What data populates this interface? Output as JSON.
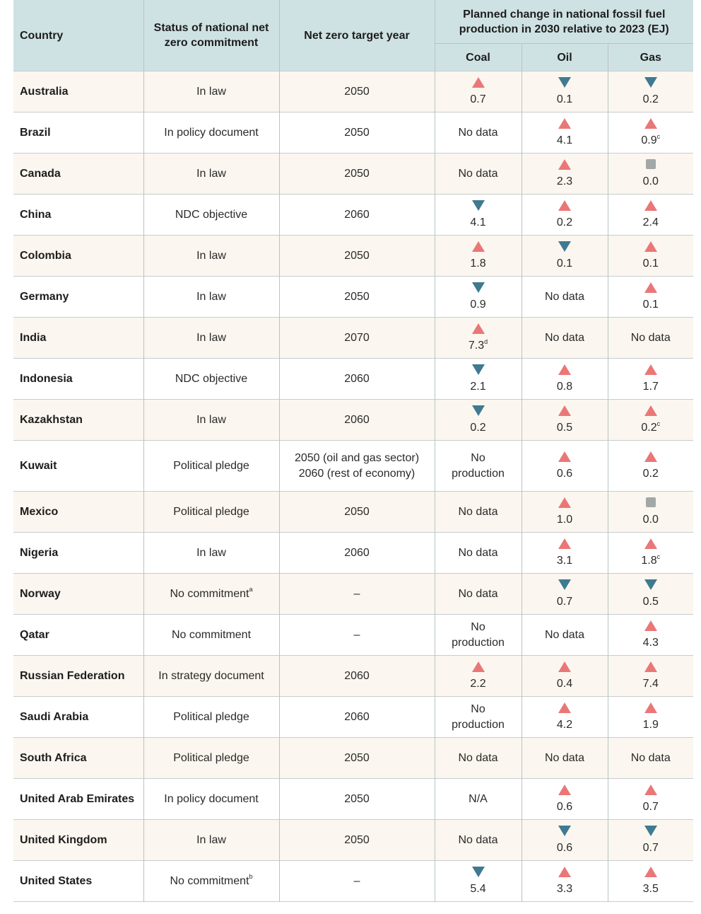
{
  "headers": {
    "country": "Country",
    "status": "Status of national net zero commitment",
    "target": "Net zero target year",
    "group": "Planned change in national fossil fuel production in 2030 relative to 2023 (EJ)",
    "coal": "Coal",
    "oil": "Oil",
    "gas": "Gas"
  },
  "colors": {
    "increase": "#ea7777",
    "decrease": "#3f7a91",
    "no_change": "#a3a7a8",
    "header_bg": "#cfe2e3",
    "alt_row_bg": "#fbf6ef"
  },
  "rows": [
    {
      "country": "Australia",
      "status": "In law",
      "status_note": "",
      "target": "2050",
      "coal": {
        "dir": "up",
        "value": "0.7",
        "note": ""
      },
      "oil": {
        "dir": "down",
        "value": "0.1",
        "note": ""
      },
      "gas": {
        "dir": "down",
        "value": "0.2",
        "note": ""
      }
    },
    {
      "country": "Brazil",
      "status": "In policy document",
      "status_note": "",
      "target": "2050",
      "coal": {
        "dir": "none",
        "value": "No data",
        "note": ""
      },
      "oil": {
        "dir": "up",
        "value": "4.1",
        "note": ""
      },
      "gas": {
        "dir": "up",
        "value": "0.9",
        "note": "c"
      }
    },
    {
      "country": "Canada",
      "status": "In law",
      "status_note": "",
      "target": "2050",
      "coal": {
        "dir": "none",
        "value": "No data",
        "note": ""
      },
      "oil": {
        "dir": "up",
        "value": "2.3",
        "note": ""
      },
      "gas": {
        "dir": "flat",
        "value": "0.0",
        "note": ""
      }
    },
    {
      "country": "China",
      "status": "NDC objective",
      "status_note": "",
      "target": "2060",
      "coal": {
        "dir": "down",
        "value": "4.1",
        "note": ""
      },
      "oil": {
        "dir": "up",
        "value": "0.2",
        "note": ""
      },
      "gas": {
        "dir": "up",
        "value": "2.4",
        "note": ""
      }
    },
    {
      "country": "Colombia",
      "status": "In law",
      "status_note": "",
      "target": "2050",
      "coal": {
        "dir": "up",
        "value": "1.8",
        "note": ""
      },
      "oil": {
        "dir": "down",
        "value": "0.1",
        "note": ""
      },
      "gas": {
        "dir": "up",
        "value": "0.1",
        "note": ""
      }
    },
    {
      "country": "Germany",
      "status": "In law",
      "status_note": "",
      "target": "2050",
      "coal": {
        "dir": "down",
        "value": "0.9",
        "note": ""
      },
      "oil": {
        "dir": "none",
        "value": "No data",
        "note": ""
      },
      "gas": {
        "dir": "up",
        "value": "0.1",
        "note": ""
      }
    },
    {
      "country": "India",
      "status": "In law",
      "status_note": "",
      "target": "2070",
      "coal": {
        "dir": "up",
        "value": "7.3",
        "note": "d"
      },
      "oil": {
        "dir": "none",
        "value": "No data",
        "note": ""
      },
      "gas": {
        "dir": "none",
        "value": "No data",
        "note": ""
      }
    },
    {
      "country": "Indonesia",
      "status": "NDC objective",
      "status_note": "",
      "target": "2060",
      "coal": {
        "dir": "down",
        "value": "2.1",
        "note": ""
      },
      "oil": {
        "dir": "up",
        "value": "0.8",
        "note": ""
      },
      "gas": {
        "dir": "up",
        "value": "1.7",
        "note": ""
      }
    },
    {
      "country": "Kazakhstan",
      "status": "In law",
      "status_note": "",
      "target": "2060",
      "coal": {
        "dir": "down",
        "value": "0.2",
        "note": ""
      },
      "oil": {
        "dir": "up",
        "value": "0.5",
        "note": ""
      },
      "gas": {
        "dir": "up",
        "value": "0.2",
        "note": "c"
      }
    },
    {
      "country": "Kuwait",
      "status": "Political pledge",
      "status_note": "",
      "target": "2050 (oil and gas sector)",
      "target2": "2060 (rest of economy)",
      "coal": {
        "dir": "none",
        "value": "No",
        "value2": "production",
        "note": ""
      },
      "oil": {
        "dir": "up",
        "value": "0.6",
        "note": ""
      },
      "gas": {
        "dir": "up",
        "value": "0.2",
        "note": ""
      }
    },
    {
      "country": "Mexico",
      "status": "Political pledge",
      "status_note": "",
      "target": "2050",
      "coal": {
        "dir": "none",
        "value": "No data",
        "note": ""
      },
      "oil": {
        "dir": "up",
        "value": "1.0",
        "note": ""
      },
      "gas": {
        "dir": "flat",
        "value": "0.0",
        "note": ""
      }
    },
    {
      "country": "Nigeria",
      "status": "In law",
      "status_note": "",
      "target": "2060",
      "coal": {
        "dir": "none",
        "value": "No data",
        "note": ""
      },
      "oil": {
        "dir": "up",
        "value": "3.1",
        "note": ""
      },
      "gas": {
        "dir": "up",
        "value": "1.8",
        "note": "c"
      }
    },
    {
      "country": "Norway",
      "status": "No commitment",
      "status_note": "a",
      "target": "–",
      "coal": {
        "dir": "none",
        "value": "No data",
        "note": ""
      },
      "oil": {
        "dir": "down",
        "value": "0.7",
        "note": ""
      },
      "gas": {
        "dir": "down",
        "value": "0.5",
        "note": ""
      }
    },
    {
      "country": "Qatar",
      "status": "No commitment",
      "status_note": "",
      "target": "–",
      "coal": {
        "dir": "none",
        "value": "No",
        "value2": "production",
        "note": ""
      },
      "oil": {
        "dir": "none",
        "value": "No data",
        "note": ""
      },
      "gas": {
        "dir": "up",
        "value": "4.3",
        "note": ""
      }
    },
    {
      "country": "Russian Federation",
      "status": "In strategy document",
      "status_note": "",
      "target": "2060",
      "coal": {
        "dir": "up",
        "value": "2.2",
        "note": ""
      },
      "oil": {
        "dir": "up",
        "value": "0.4",
        "note": ""
      },
      "gas": {
        "dir": "up",
        "value": "7.4",
        "note": ""
      }
    },
    {
      "country": "Saudi Arabia",
      "status": "Political pledge",
      "status_note": "",
      "target": "2060",
      "coal": {
        "dir": "none",
        "value": "No",
        "value2": "production",
        "note": ""
      },
      "oil": {
        "dir": "up",
        "value": "4.2",
        "note": ""
      },
      "gas": {
        "dir": "up",
        "value": "1.9",
        "note": ""
      }
    },
    {
      "country": "South Africa",
      "status": "Political pledge",
      "status_note": "",
      "target": "2050",
      "coal": {
        "dir": "none",
        "value": "No data",
        "note": ""
      },
      "oil": {
        "dir": "none",
        "value": "No data",
        "note": ""
      },
      "gas": {
        "dir": "none",
        "value": "No data",
        "note": ""
      }
    },
    {
      "country": "United Arab Emirates",
      "status": "In policy document",
      "status_note": "",
      "target": "2050",
      "coal": {
        "dir": "none",
        "value": "N/A",
        "note": ""
      },
      "oil": {
        "dir": "up",
        "value": "0.6",
        "note": ""
      },
      "gas": {
        "dir": "up",
        "value": "0.7",
        "note": ""
      }
    },
    {
      "country": "United Kingdom",
      "status": "In law",
      "status_note": "",
      "target": "2050",
      "coal": {
        "dir": "none",
        "value": "No data",
        "note": ""
      },
      "oil": {
        "dir": "down",
        "value": "0.6",
        "note": ""
      },
      "gas": {
        "dir": "down",
        "value": "0.7",
        "note": ""
      }
    },
    {
      "country": "United States",
      "status": "No commitment",
      "status_note": "b",
      "target": "–",
      "coal": {
        "dir": "down",
        "value": "5.4",
        "note": ""
      },
      "oil": {
        "dir": "up",
        "value": "3.3",
        "note": ""
      },
      "gas": {
        "dir": "up",
        "value": "3.5",
        "note": ""
      }
    }
  ]
}
